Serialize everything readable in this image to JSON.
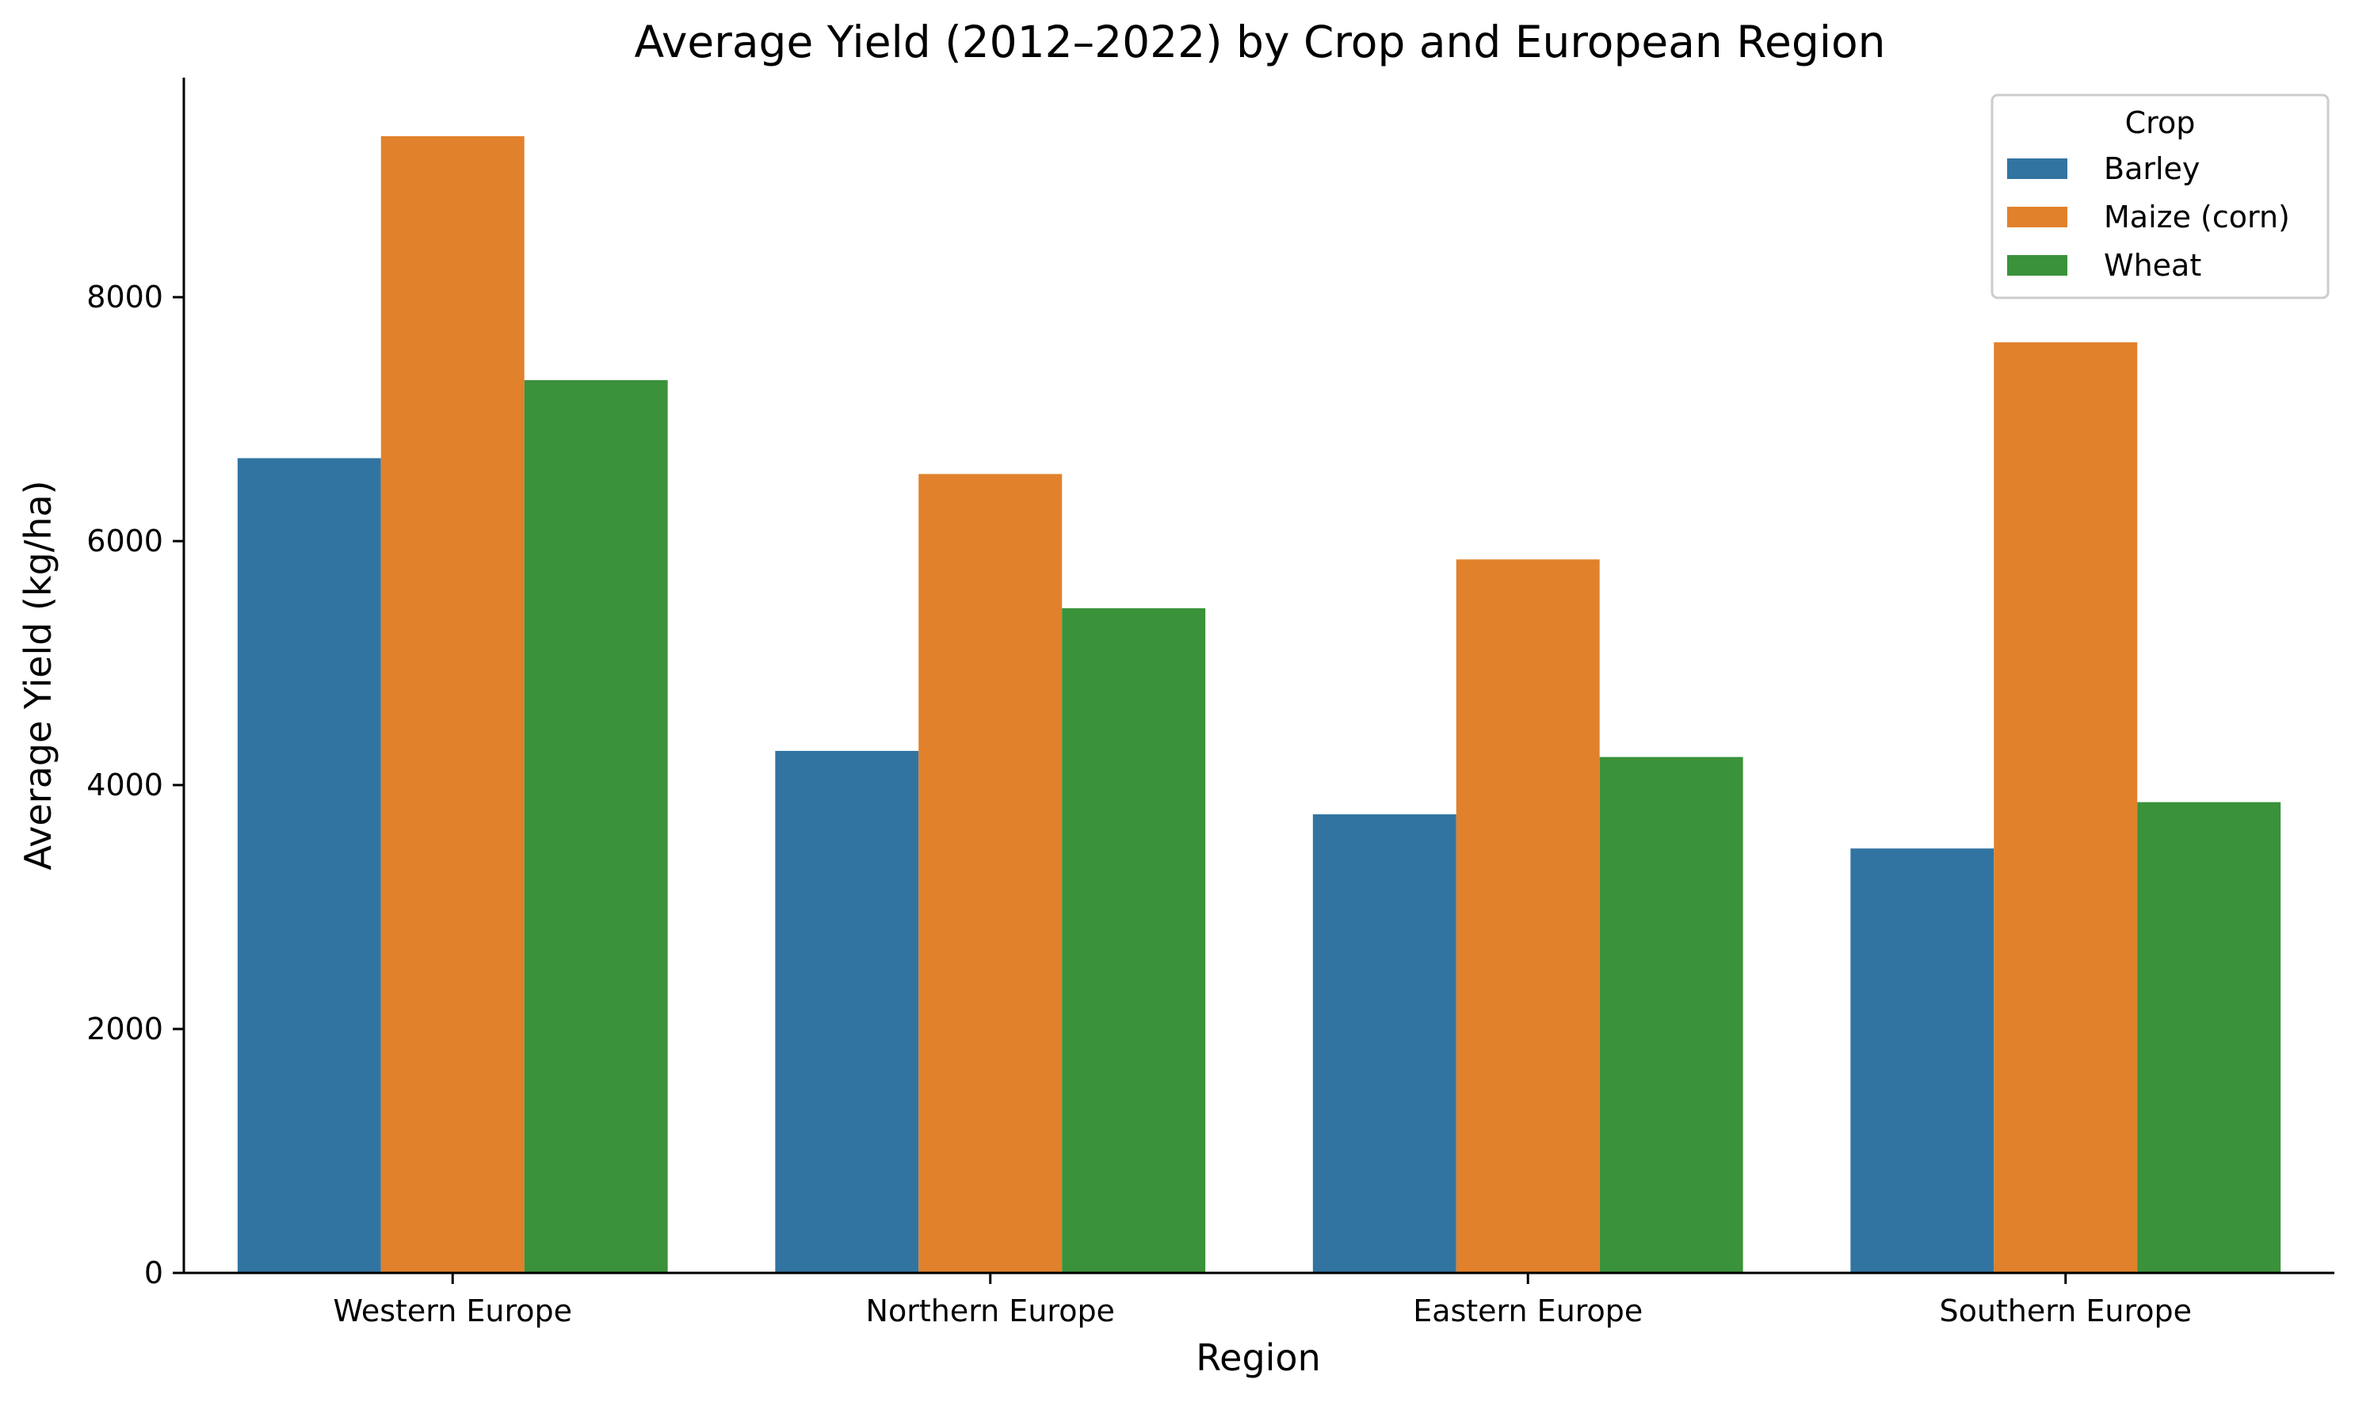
{
  "chart_data": {
    "type": "bar",
    "title": "Average Yield (2012–2022) by Crop and European Region",
    "xlabel": "Region",
    "ylabel": "Average Yield (kg/ha)",
    "categories": [
      "Western Europe",
      "Northern Europe",
      "Eastern Europe",
      "Southern Europe"
    ],
    "series": [
      {
        "name": "Barley",
        "color": "#3274a1",
        "values": [
          6680,
          4280,
          3760,
          3480
        ]
      },
      {
        "name": "Maize (corn)",
        "color": "#e1812c",
        "values": [
          9320,
          6550,
          5850,
          7630
        ]
      },
      {
        "name": "Wheat",
        "color": "#3a923a",
        "values": [
          7320,
          5450,
          4230,
          3860
        ]
      }
    ],
    "yticks": [
      0,
      2000,
      4000,
      6000,
      8000
    ],
    "ylim": [
      0,
      9800
    ],
    "grid": false,
    "legend": {
      "title": "Crop",
      "placement": "top-right"
    }
  }
}
